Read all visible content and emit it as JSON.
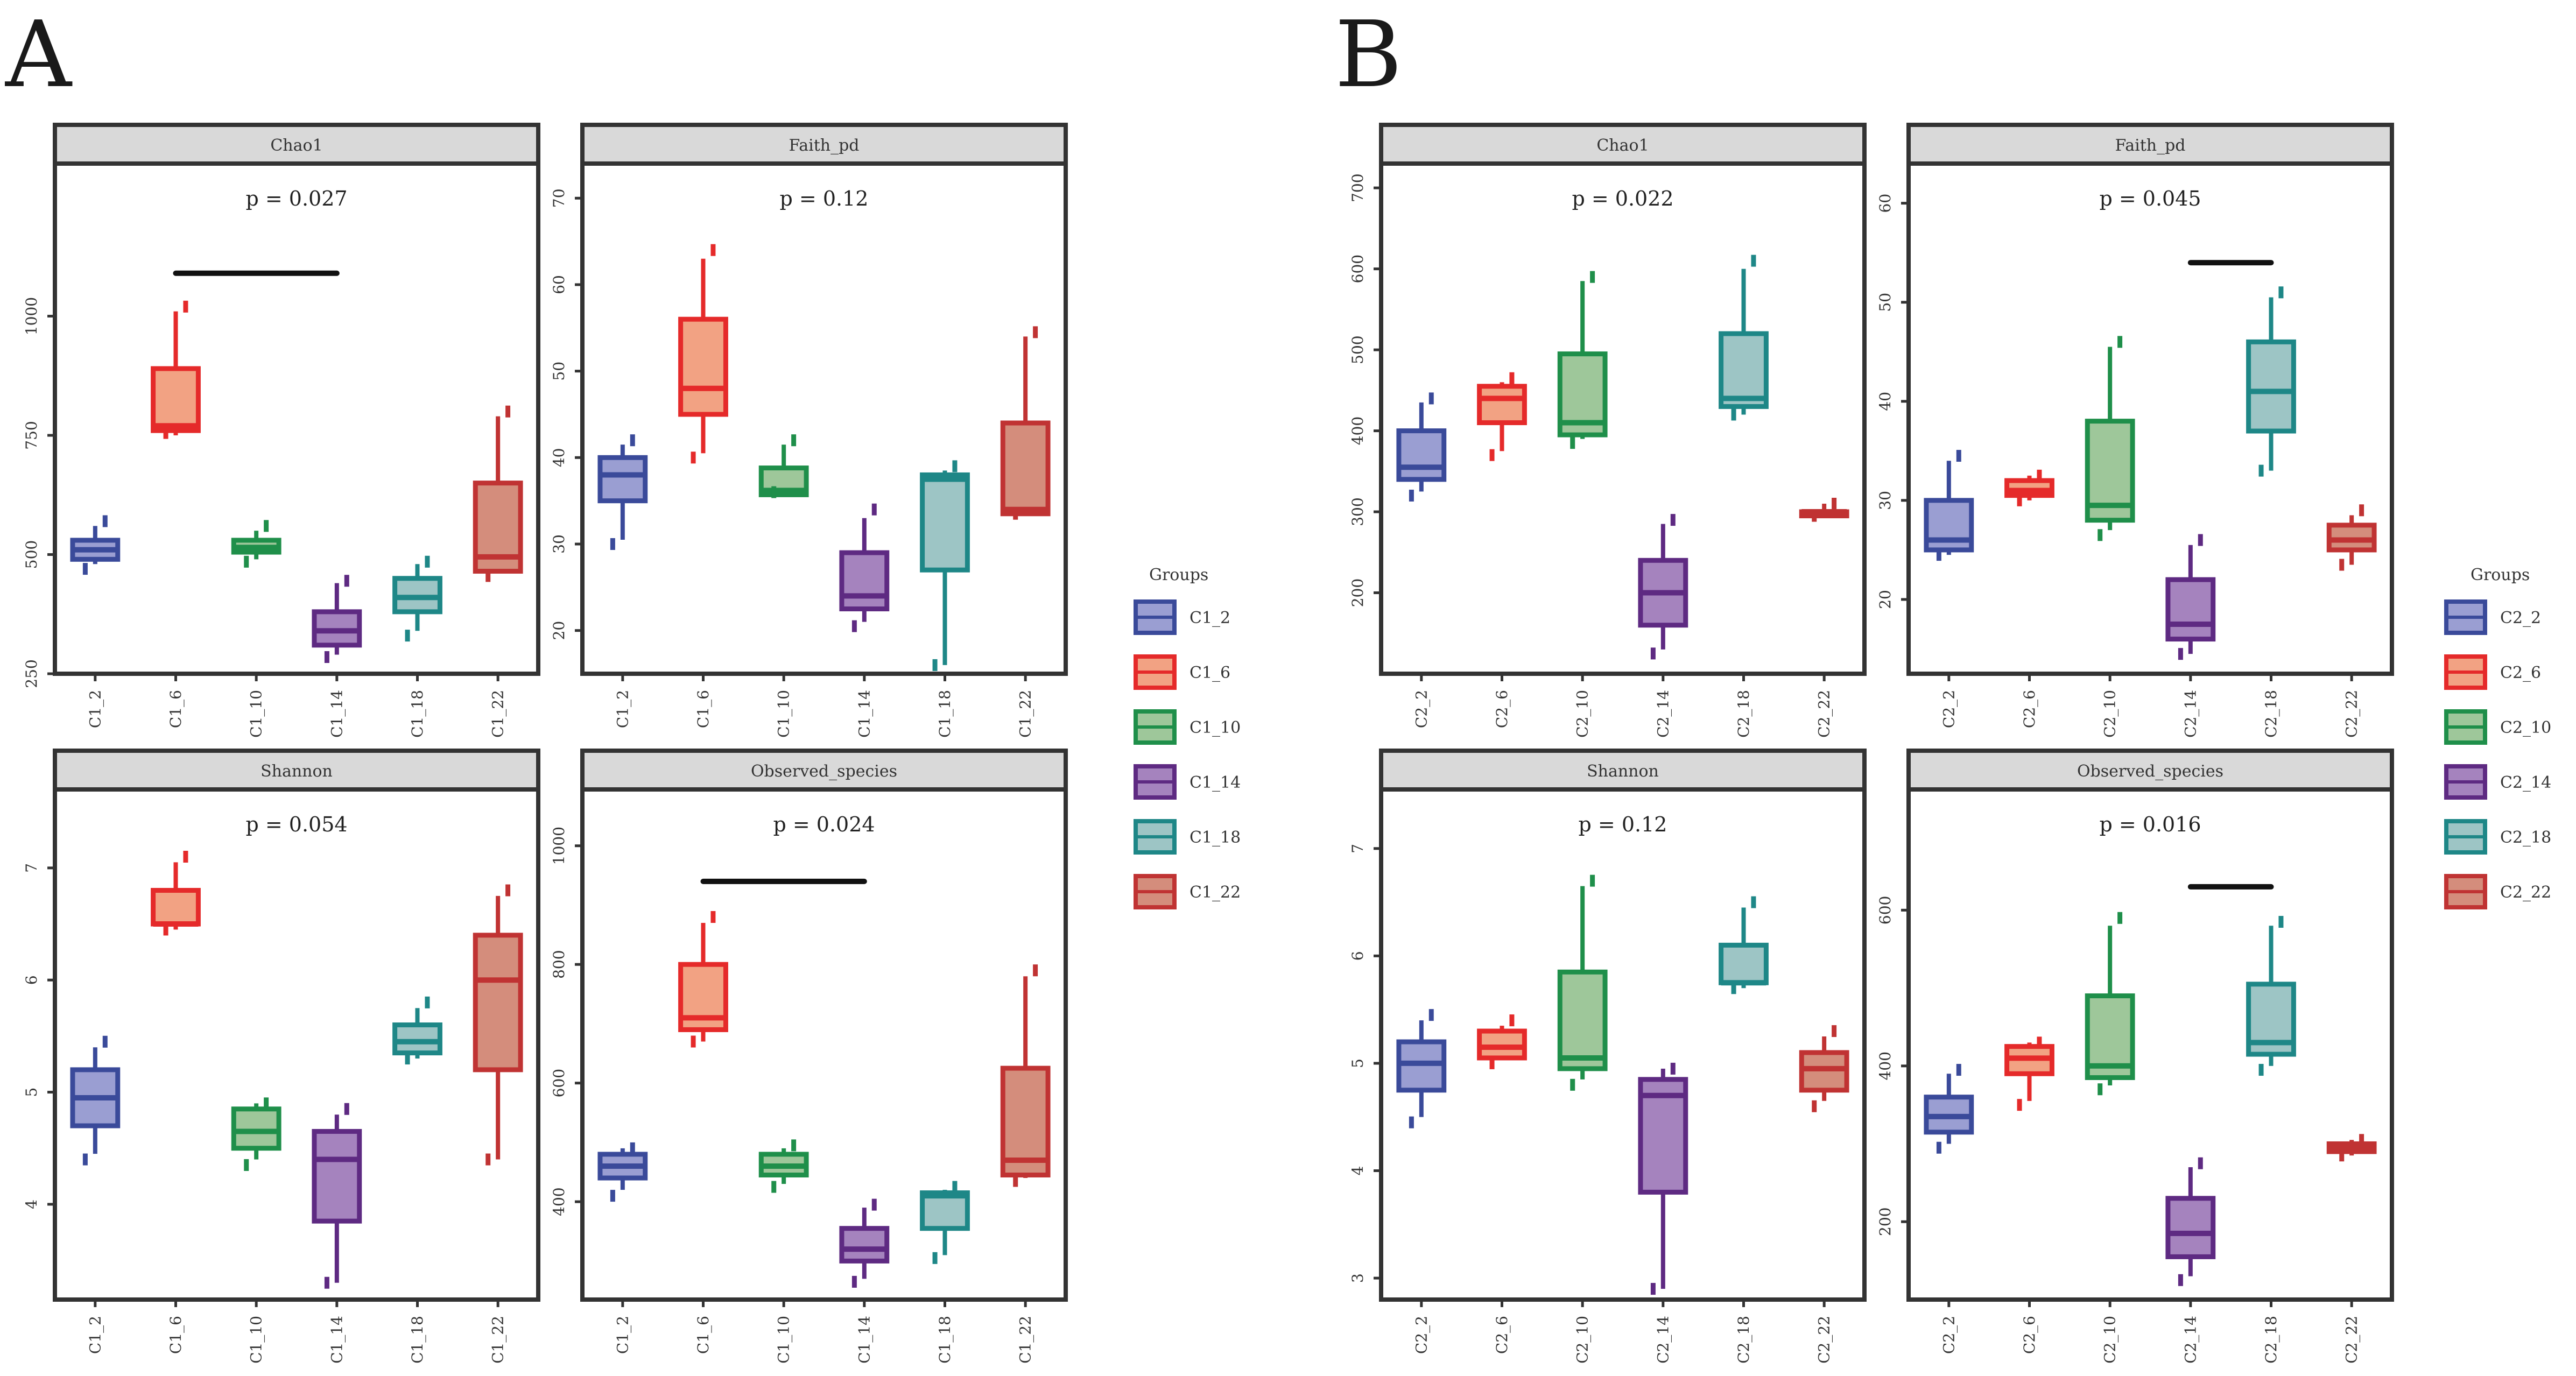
{
  "figure_labels": [
    "A",
    "B"
  ],
  "legends": [
    {
      "title": "Groups",
      "entries": [
        "C1_2",
        "C1_6",
        "C1_10",
        "C1_14",
        "C1_18",
        "C1_22"
      ]
    },
    {
      "title": "Groups",
      "entries": [
        "C2_2",
        "C2_6",
        "C2_10",
        "C2_14",
        "C2_18",
        "C2_22"
      ]
    }
  ],
  "colors": {
    "edges": [
      "#3a4a9a",
      "#e52a2a",
      "#1f8f4a",
      "#5e2a82",
      "#1e8787",
      "#c03333"
    ],
    "fills": [
      "#9a9ed2",
      "#f2a283",
      "#9ec79a",
      "#a583be",
      "#9dc5c5",
      "#d48d7c"
    ]
  },
  "chart_data": [
    {
      "panel": "A",
      "type": "box",
      "title": "Chao1",
      "pvalue": "p = 0.027",
      "categories": [
        "C1_2",
        "C1_6",
        "C1_10",
        "C1_14",
        "C1_18",
        "C1_22"
      ],
      "ylim": [
        250,
        1320
      ],
      "yticks": [
        250,
        500,
        750,
        1000
      ],
      "significance_bar": [
        "C1_6",
        "C1_14"
      ],
      "sig_y": 1090,
      "boxes": [
        {
          "min": 480,
          "q1": 490,
          "median": 510,
          "q3": 530,
          "max": 560,
          "outliers": [
            470,
            570
          ]
        },
        {
          "min": 750,
          "q1": 760,
          "median": 770,
          "q3": 890,
          "max": 1010,
          "outliers": [
            755,
            1020
          ]
        },
        {
          "min": 490,
          "q1": 505,
          "median": 515,
          "q3": 530,
          "max": 550,
          "outliers": [
            485,
            560
          ]
        },
        {
          "min": 290,
          "q1": 310,
          "median": 340,
          "q3": 380,
          "max": 440,
          "outliers": [
            285,
            445
          ]
        },
        {
          "min": 340,
          "q1": 380,
          "median": 410,
          "q3": 450,
          "max": 480,
          "outliers": [
            330,
            485
          ]
        },
        {
          "min": 460,
          "q1": 465,
          "median": 495,
          "q3": 650,
          "max": 790,
          "outliers": [
            455,
            800
          ]
        }
      ]
    },
    {
      "panel": "A",
      "type": "box",
      "title": "Faith_pd",
      "pvalue": "p = 0.12",
      "categories": [
        "C1_2",
        "C1_6",
        "C1_10",
        "C1_14",
        "C1_18",
        "C1_22"
      ],
      "ylim": [
        15,
        74
      ],
      "yticks": [
        20,
        30,
        40,
        50,
        60,
        70
      ],
      "boxes": [
        {
          "min": 30.5,
          "q1": 35,
          "median": 38,
          "q3": 40,
          "max": 41.5,
          "outliers": [
            30,
            42
          ]
        },
        {
          "min": 40.5,
          "q1": 45,
          "median": 48,
          "q3": 56,
          "max": 63,
          "outliers": [
            40,
            64
          ]
        },
        {
          "min": 35.5,
          "q1": 35.7,
          "median": 36.2,
          "q3": 38.8,
          "max": 41.5,
          "outliers": [
            36,
            42
          ]
        },
        {
          "min": 21,
          "q1": 22.5,
          "median": 24,
          "q3": 29,
          "max": 33,
          "outliers": [
            20.5,
            34
          ]
        },
        {
          "min": 16,
          "q1": 27,
          "median": 37.5,
          "q3": 38,
          "max": 38.5,
          "outliers": [
            16,
            39
          ]
        },
        {
          "min": 33.5,
          "q1": 33.5,
          "median": 34,
          "q3": 44,
          "max": 54,
          "outliers": [
            33.5,
            54.5
          ]
        }
      ]
    },
    {
      "panel": "A",
      "type": "box",
      "title": "Shannon",
      "pvalue": "p = 0.054",
      "categories": [
        "C1_2",
        "C1_6",
        "C1_10",
        "C1_14",
        "C1_18",
        "C1_22"
      ],
      "ylim": [
        3.15,
        7.7
      ],
      "yticks": [
        4,
        5,
        6,
        7
      ],
      "boxes": [
        {
          "min": 4.45,
          "q1": 4.7,
          "median": 4.95,
          "q3": 5.2,
          "max": 5.4,
          "outliers": [
            4.4,
            5.45
          ]
        },
        {
          "min": 6.45,
          "q1": 6.5,
          "median": 6.5,
          "q3": 6.8,
          "max": 7.05,
          "outliers": [
            6.45,
            7.1
          ]
        },
        {
          "min": 4.4,
          "q1": 4.5,
          "median": 4.65,
          "q3": 4.85,
          "max": 4.9,
          "outliers": [
            4.35,
            4.9
          ]
        },
        {
          "min": 3.3,
          "q1": 3.85,
          "median": 4.4,
          "q3": 4.65,
          "max": 4.8,
          "outliers": [
            3.3,
            4.85
          ]
        },
        {
          "min": 5.3,
          "q1": 5.35,
          "median": 5.45,
          "q3": 5.6,
          "max": 5.75,
          "outliers": [
            5.3,
            5.8
          ]
        },
        {
          "min": 4.4,
          "q1": 5.2,
          "median": 6.0,
          "q3": 6.4,
          "max": 6.75,
          "outliers": [
            4.4,
            6.8
          ]
        }
      ]
    },
    {
      "panel": "A",
      "type": "box",
      "title": "Observed_species",
      "pvalue": "p = 0.024",
      "categories": [
        "C1_2",
        "C1_6",
        "C1_10",
        "C1_14",
        "C1_18",
        "C1_22"
      ],
      "ylim": [
        235,
        1095
      ],
      "yticks": [
        400,
        600,
        800,
        1000
      ],
      "significance_bar": [
        "C1_6",
        "C1_14"
      ],
      "sig_y": 940,
      "boxes": [
        {
          "min": 420,
          "q1": 440,
          "median": 460,
          "q3": 480,
          "max": 490,
          "outliers": [
            410,
            490
          ]
        },
        {
          "min": 670,
          "q1": 690,
          "median": 710,
          "q3": 800,
          "max": 870,
          "outliers": [
            670,
            880
          ]
        },
        {
          "min": 430,
          "q1": 445,
          "median": 460,
          "q3": 480,
          "max": 490,
          "outliers": [
            425,
            495
          ]
        },
        {
          "min": 270,
          "q1": 300,
          "median": 320,
          "q3": 355,
          "max": 390,
          "outliers": [
            265,
            395
          ]
        },
        {
          "min": 310,
          "q1": 355,
          "median": 410,
          "q3": 415,
          "max": 420,
          "outliers": [
            305,
            425
          ]
        },
        {
          "min": 440,
          "q1": 445,
          "median": 470,
          "q3": 625,
          "max": 780,
          "outliers": [
            435,
            790
          ]
        }
      ]
    },
    {
      "panel": "B",
      "type": "box",
      "title": "Chao1",
      "pvalue": "p = 0.022",
      "categories": [
        "C2_2",
        "C2_6",
        "C2_10",
        "C2_14",
        "C2_18",
        "C2_22"
      ],
      "ylim": [
        100,
        730
      ],
      "yticks": [
        200,
        300,
        400,
        500,
        600,
        700
      ],
      "boxes": [
        {
          "min": 325,
          "q1": 340,
          "median": 355,
          "q3": 400,
          "max": 435,
          "outliers": [
            320,
            440
          ]
        },
        {
          "min": 375,
          "q1": 410,
          "median": 440,
          "q3": 455,
          "max": 460,
          "outliers": [
            370,
            465
          ]
        },
        {
          "min": 390,
          "q1": 395,
          "median": 410,
          "q3": 495,
          "max": 585,
          "outliers": [
            385,
            590
          ]
        },
        {
          "min": 130,
          "q1": 160,
          "median": 200,
          "q3": 240,
          "max": 285,
          "outliers": [
            125,
            290
          ]
        },
        {
          "min": 420,
          "q1": 430,
          "median": 440,
          "q3": 520,
          "max": 600,
          "outliers": [
            420,
            610
          ]
        },
        {
          "min": 295,
          "q1": 295,
          "median": 300,
          "q3": 300,
          "max": 310,
          "outliers": [
            295,
            310
          ]
        }
      ]
    },
    {
      "panel": "B",
      "type": "box",
      "title": "Faith_pd",
      "pvalue": "p = 0.045",
      "categories": [
        "C2_2",
        "C2_6",
        "C2_10",
        "C2_14",
        "C2_18",
        "C2_22"
      ],
      "ylim": [
        12.5,
        64
      ],
      "yticks": [
        20,
        30,
        40,
        50,
        60
      ],
      "significance_bar": [
        "C2_14",
        "C2_18"
      ],
      "sig_y": 54,
      "boxes": [
        {
          "min": 24.5,
          "q1": 25,
          "median": 26,
          "q3": 30,
          "max": 34,
          "outliers": [
            24.5,
            34.5
          ]
        },
        {
          "min": 30,
          "q1": 30.5,
          "median": 31,
          "q3": 32,
          "max": 32.5,
          "outliers": [
            30,
            32.5
          ]
        },
        {
          "min": 27,
          "q1": 28,
          "median": 29.5,
          "q3": 38,
          "max": 45.5,
          "outliers": [
            26.5,
            46
          ]
        },
        {
          "min": 14.5,
          "q1": 16,
          "median": 17.5,
          "q3": 22,
          "max": 25.5,
          "outliers": [
            14.5,
            26
          ]
        },
        {
          "min": 33,
          "q1": 37,
          "median": 41,
          "q3": 46,
          "max": 50.5,
          "outliers": [
            33,
            51
          ]
        },
        {
          "min": 23.5,
          "q1": 25,
          "median": 26,
          "q3": 27.5,
          "max": 28.5,
          "outliers": [
            23.5,
            29
          ]
        }
      ]
    },
    {
      "panel": "B",
      "type": "box",
      "title": "Shannon",
      "pvalue": "p = 0.12",
      "categories": [
        "C2_2",
        "C2_6",
        "C2_10",
        "C2_14",
        "C2_18",
        "C2_22"
      ],
      "ylim": [
        2.8,
        7.55
      ],
      "yticks": [
        3,
        4,
        5,
        6,
        7
      ],
      "boxes": [
        {
          "min": 4.5,
          "q1": 4.75,
          "median": 5.0,
          "q3": 5.2,
          "max": 5.4,
          "outliers": [
            4.45,
            5.45
          ]
        },
        {
          "min": 5.05,
          "q1": 5.05,
          "median": 5.15,
          "q3": 5.3,
          "max": 5.35,
          "outliers": [
            5.0,
            5.4
          ]
        },
        {
          "min": 4.85,
          "q1": 4.95,
          "median": 5.05,
          "q3": 5.85,
          "max": 6.65,
          "outliers": [
            4.8,
            6.7
          ]
        },
        {
          "min": 2.9,
          "q1": 3.8,
          "median": 4.7,
          "q3": 4.85,
          "max": 4.95,
          "outliers": [
            2.9,
            4.95
          ]
        },
        {
          "min": 5.7,
          "q1": 5.75,
          "median": 5.75,
          "q3": 6.1,
          "max": 6.45,
          "outliers": [
            5.7,
            6.5
          ]
        },
        {
          "min": 4.65,
          "q1": 4.75,
          "median": 4.95,
          "q3": 5.1,
          "max": 5.25,
          "outliers": [
            4.6,
            5.3
          ]
        }
      ]
    },
    {
      "panel": "B",
      "type": "box",
      "title": "Observed_species",
      "pvalue": "p = 0.016",
      "categories": [
        "C2_2",
        "C2_6",
        "C2_10",
        "C2_14",
        "C2_18",
        "C2_22"
      ],
      "ylim": [
        100,
        755
      ],
      "yticks": [
        200,
        400,
        600
      ],
      "significance_bar": [
        "C2_14",
        "C2_18"
      ],
      "sig_y": 630,
      "boxes": [
        {
          "min": 300,
          "q1": 315,
          "median": 335,
          "q3": 360,
          "max": 390,
          "outliers": [
            295,
            395
          ]
        },
        {
          "min": 355,
          "q1": 390,
          "median": 410,
          "q3": 425,
          "max": 430,
          "outliers": [
            350,
            430
          ]
        },
        {
          "min": 375,
          "q1": 385,
          "median": 400,
          "q3": 490,
          "max": 580,
          "outliers": [
            370,
            590
          ]
        },
        {
          "min": 130,
          "q1": 155,
          "median": 185,
          "q3": 230,
          "max": 270,
          "outliers": [
            125,
            275
          ]
        },
        {
          "min": 400,
          "q1": 415,
          "median": 430,
          "q3": 505,
          "max": 580,
          "outliers": [
            395,
            585
          ]
        },
        {
          "min": 285,
          "q1": 290,
          "median": 295,
          "q3": 300,
          "max": 305,
          "outliers": [
            285,
            305
          ]
        }
      ]
    }
  ]
}
